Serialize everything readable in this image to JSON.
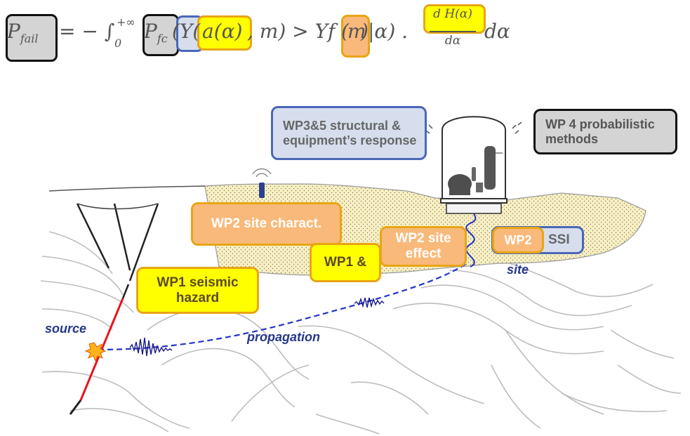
{
  "formula": {
    "p_fail": "P",
    "p_fail_sub": "fail",
    "equals": "= − ∫",
    "lower": "0",
    "upper": "+∞",
    "p_fc": "P",
    "p_fc_sub": "fc",
    "y_open": "(Y(",
    "a_alpha": "a(α)",
    "middle": ", m) > Yf",
    "m_open": "(",
    "m": "m",
    "m_close": ")",
    "given": " |α) .",
    "frac_num": "d H(α)",
    "frac_den": "dα",
    "tail": "dα"
  },
  "labels": {
    "wp35": "WP3&5 structural & equipment’s response",
    "wp4": "WP  4 probabilistic methods",
    "wp2_char": "WP2 site charact.",
    "wp1_amp": "WP1 &",
    "wp2_effect": "WP2 site effect",
    "wp2": "WP2",
    "ssi": "SSI",
    "wp1_hazard": "WP1 seismic hazard"
  },
  "annotations": {
    "source": "source",
    "propagation": "propagation",
    "site": "site"
  },
  "colors": {
    "orange_fill": "#f9b97a",
    "orange_border": "#e8a515",
    "yellow_fill": "#ffff00",
    "blue_fill": "#d6deee",
    "blue_border": "#4a67b8",
    "gray_fill": "#d4d4d4",
    "site_fill": "#f8f0c4",
    "wave": "#2233cc",
    "fault": "#e8141e"
  },
  "icons": [
    "sensor-icon",
    "reactor-building-icon",
    "explosion-icon"
  ]
}
